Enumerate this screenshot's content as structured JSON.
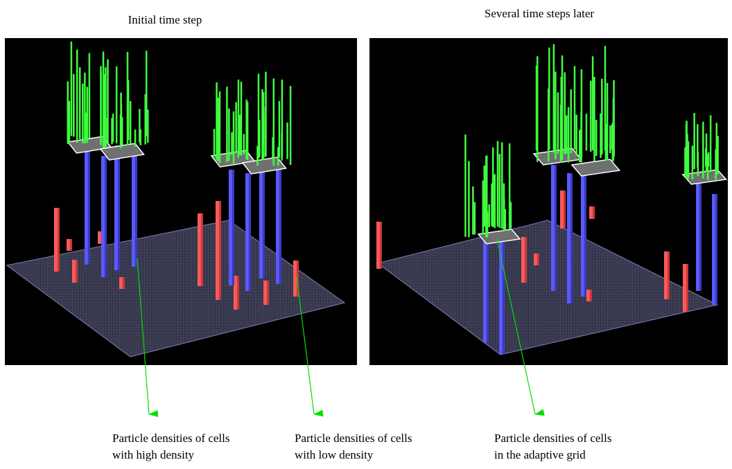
{
  "panels": [
    {
      "title": "Initial time step"
    },
    {
      "title": "Several time steps later"
    }
  ],
  "annotations": [
    {
      "lines": [
        "Particle densities of cells",
        "with high density"
      ]
    },
    {
      "lines": [
        "Particle densities of cells",
        "with low density"
      ]
    },
    {
      "lines": [
        "Particle densities of cells",
        "in the adaptive grid"
      ]
    }
  ]
}
